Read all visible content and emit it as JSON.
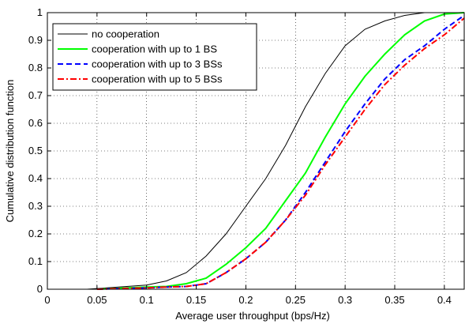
{
  "chart_data": {
    "type": "line",
    "title": "",
    "xlabel": "Average user throughput (bps/Hz)",
    "ylabel": "Cumulative distribution function",
    "xlim": [
      0,
      0.42
    ],
    "ylim": [
      0,
      1
    ],
    "x_ticks": [
      0,
      0.05,
      0.1,
      0.15,
      0.2,
      0.25,
      0.3,
      0.35,
      0.4
    ],
    "x_tick_labels": [
      "0",
      "0.05",
      "0.1",
      "0.15",
      "0.2",
      "0.25",
      "0.3",
      "0.35",
      "0.4"
    ],
    "y_ticks": [
      0,
      0.1,
      0.2,
      0.3,
      0.4,
      0.5,
      0.6,
      0.7,
      0.8,
      0.9,
      1
    ],
    "y_tick_labels": [
      "0",
      "0.1",
      "0.2",
      "0.3",
      "0.4",
      "0.5",
      "0.6",
      "0.7",
      "0.8",
      "0.9",
      "1"
    ],
    "grid": true,
    "legend_position": "top-left",
    "series": [
      {
        "name": "no cooperation",
        "color": "#000000",
        "style": "solid",
        "x": [
          0.04,
          0.06,
          0.08,
          0.1,
          0.12,
          0.14,
          0.16,
          0.18,
          0.2,
          0.22,
          0.24,
          0.26,
          0.28,
          0.3,
          0.32,
          0.34,
          0.36,
          0.38,
          0.4,
          0.42
        ],
        "y": [
          0.0,
          0.005,
          0.01,
          0.015,
          0.03,
          0.06,
          0.12,
          0.2,
          0.3,
          0.4,
          0.52,
          0.66,
          0.78,
          0.88,
          0.94,
          0.97,
          0.99,
          1.0,
          1.0,
          1.0
        ]
      },
      {
        "name": "cooperation with up to 1 BS",
        "color": "#00ff00",
        "style": "solid",
        "x": [
          0.05,
          0.08,
          0.1,
          0.12,
          0.14,
          0.16,
          0.18,
          0.2,
          0.22,
          0.24,
          0.26,
          0.28,
          0.3,
          0.32,
          0.34,
          0.36,
          0.38,
          0.4,
          0.42
        ],
        "y": [
          0.0,
          0.005,
          0.008,
          0.01,
          0.02,
          0.04,
          0.09,
          0.15,
          0.22,
          0.32,
          0.42,
          0.55,
          0.67,
          0.77,
          0.85,
          0.92,
          0.97,
          0.995,
          1.0
        ]
      },
      {
        "name": "cooperation with up to 3 BSs",
        "color": "#0000ff",
        "style": "dashed",
        "x": [
          0.05,
          0.08,
          0.1,
          0.12,
          0.14,
          0.16,
          0.18,
          0.2,
          0.22,
          0.24,
          0.26,
          0.28,
          0.3,
          0.32,
          0.34,
          0.36,
          0.38,
          0.4,
          0.42
        ],
        "y": [
          0.0,
          0.003,
          0.005,
          0.008,
          0.01,
          0.02,
          0.06,
          0.11,
          0.17,
          0.25,
          0.35,
          0.46,
          0.57,
          0.67,
          0.76,
          0.83,
          0.88,
          0.94,
          0.99
        ]
      },
      {
        "name": "cooperation with up to 5 BSs",
        "color": "#ff0000",
        "style": "dashdot",
        "x": [
          0.05,
          0.08,
          0.1,
          0.12,
          0.14,
          0.16,
          0.18,
          0.2,
          0.22,
          0.24,
          0.26,
          0.28,
          0.3,
          0.32,
          0.34,
          0.36,
          0.38,
          0.4,
          0.42
        ],
        "y": [
          0.0,
          0.003,
          0.005,
          0.008,
          0.01,
          0.02,
          0.06,
          0.11,
          0.17,
          0.25,
          0.34,
          0.45,
          0.55,
          0.65,
          0.74,
          0.81,
          0.87,
          0.92,
          0.98
        ]
      }
    ]
  }
}
